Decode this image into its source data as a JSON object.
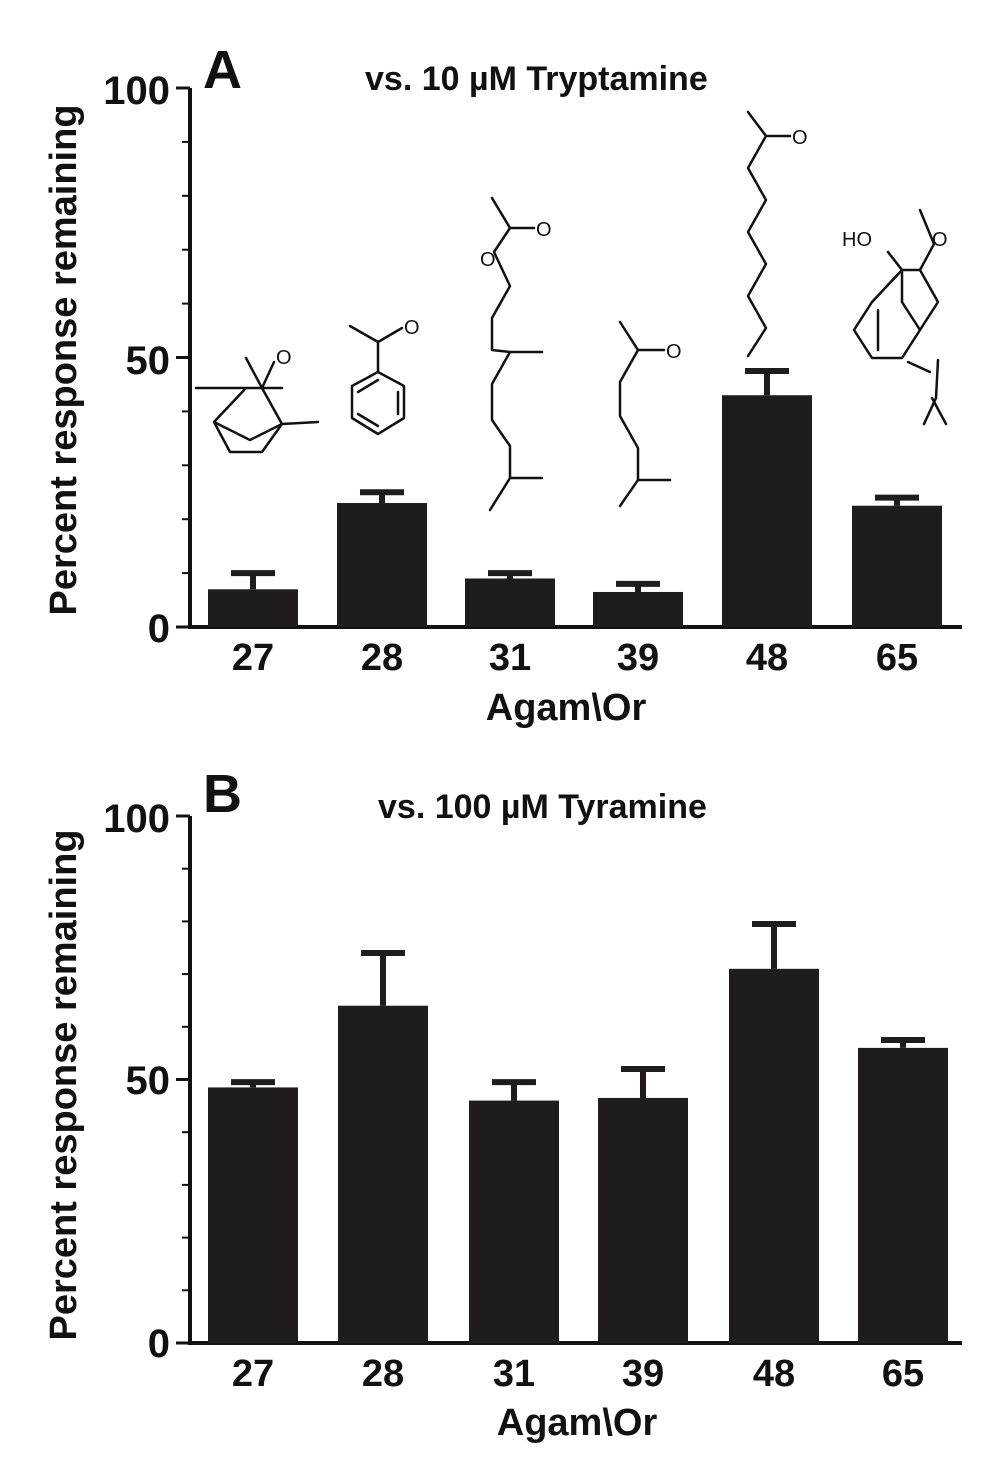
{
  "chart_data": [
    {
      "type": "bar",
      "panel": "A",
      "title": "vs. 10 µM Tryptamine",
      "xlabel": "Agam\\Or",
      "ylabel": "Percent response remaining",
      "categories": [
        "27",
        "28",
        "31",
        "39",
        "48",
        "65"
      ],
      "values": [
        7,
        23,
        9,
        6.5,
        43,
        22.5
      ],
      "errors": [
        3,
        2,
        1,
        1.5,
        4.5,
        1.5
      ],
      "ylim": [
        0,
        100
      ],
      "yticks": [
        "0",
        "50",
        "100"
      ],
      "bar_color": "#1f1c1d",
      "grid": false,
      "structure_labels": [
        "O",
        "O",
        "O",
        "O",
        "O",
        "O",
        "HO",
        "O"
      ]
    },
    {
      "type": "bar",
      "panel": "B",
      "title": "vs. 100 µM Tyramine",
      "xlabel": "Agam\\Or",
      "ylabel": "Percent response remaining",
      "categories": [
        "27",
        "28",
        "31",
        "39",
        "48",
        "65"
      ],
      "values": [
        48.5,
        64,
        46,
        46.5,
        71,
        56
      ],
      "errors": [
        1,
        10,
        3.5,
        5.5,
        8.5,
        1.5
      ],
      "ylim": [
        0,
        100
      ],
      "yticks": [
        "0",
        "50",
        "100"
      ],
      "bar_color": "#1f1c1d",
      "grid": false
    }
  ]
}
